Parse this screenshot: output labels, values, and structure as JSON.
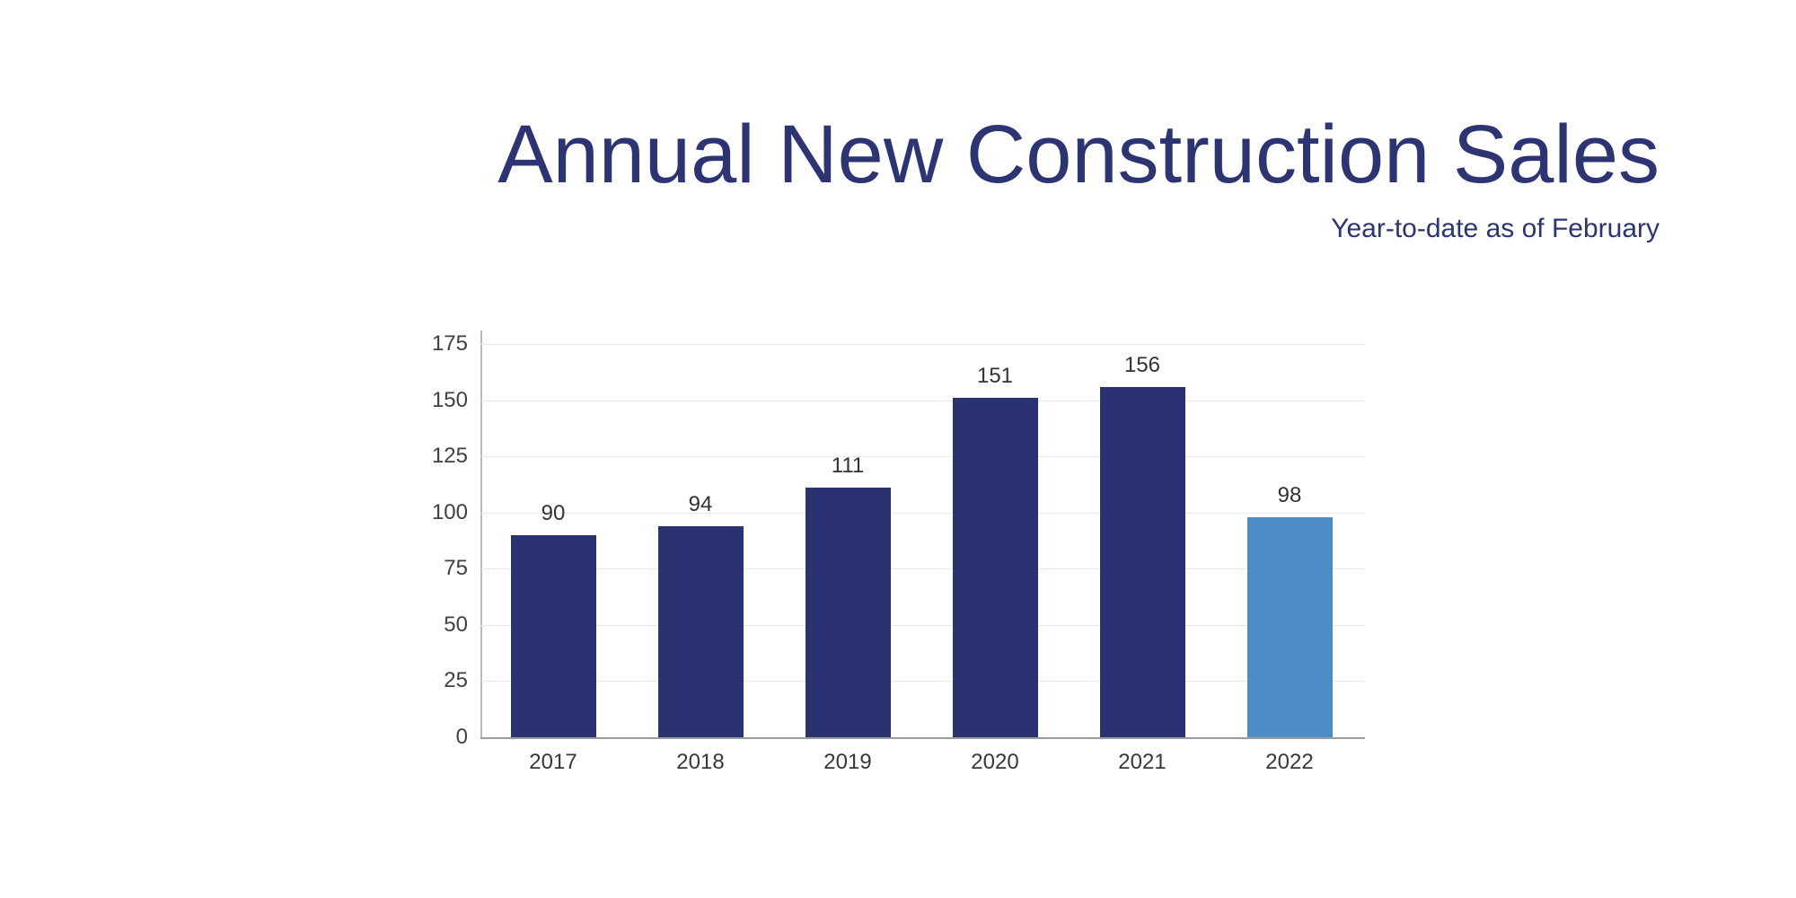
{
  "page": {
    "background": "#ffffff"
  },
  "header": {
    "title": "Annual New Construction Sales",
    "subtitle": "Year-to-date as of February",
    "title_color": "#2c3474"
  },
  "chart_data": {
    "type": "bar",
    "title": "Annual New Construction Sales",
    "subtitle": "Year-to-date as of February",
    "categories": [
      "2017",
      "2018",
      "2019",
      "2020",
      "2021",
      "2022"
    ],
    "values": [
      90,
      94,
      111,
      151,
      156,
      98
    ],
    "value_labels": [
      "90",
      "94",
      "111",
      "151",
      "156",
      "98"
    ],
    "bar_colors": [
      "#2b3272",
      "#2b3272",
      "#2b3272",
      "#2b3272",
      "#2b3272",
      "#4b8cc9"
    ],
    "default_bar_color": "#2b3272",
    "highlight_bar_color": "#4b8cc9",
    "highlight_index": 5,
    "xlabel": "",
    "ylabel": "",
    "ylim": [
      0,
      175
    ],
    "yticks": [
      0,
      25,
      50,
      75,
      100,
      125,
      150,
      175
    ],
    "grid": "horizontal",
    "gridline_color": "#e4e9ef",
    "axis_line_color": "#9a9da0",
    "legend": "none"
  }
}
